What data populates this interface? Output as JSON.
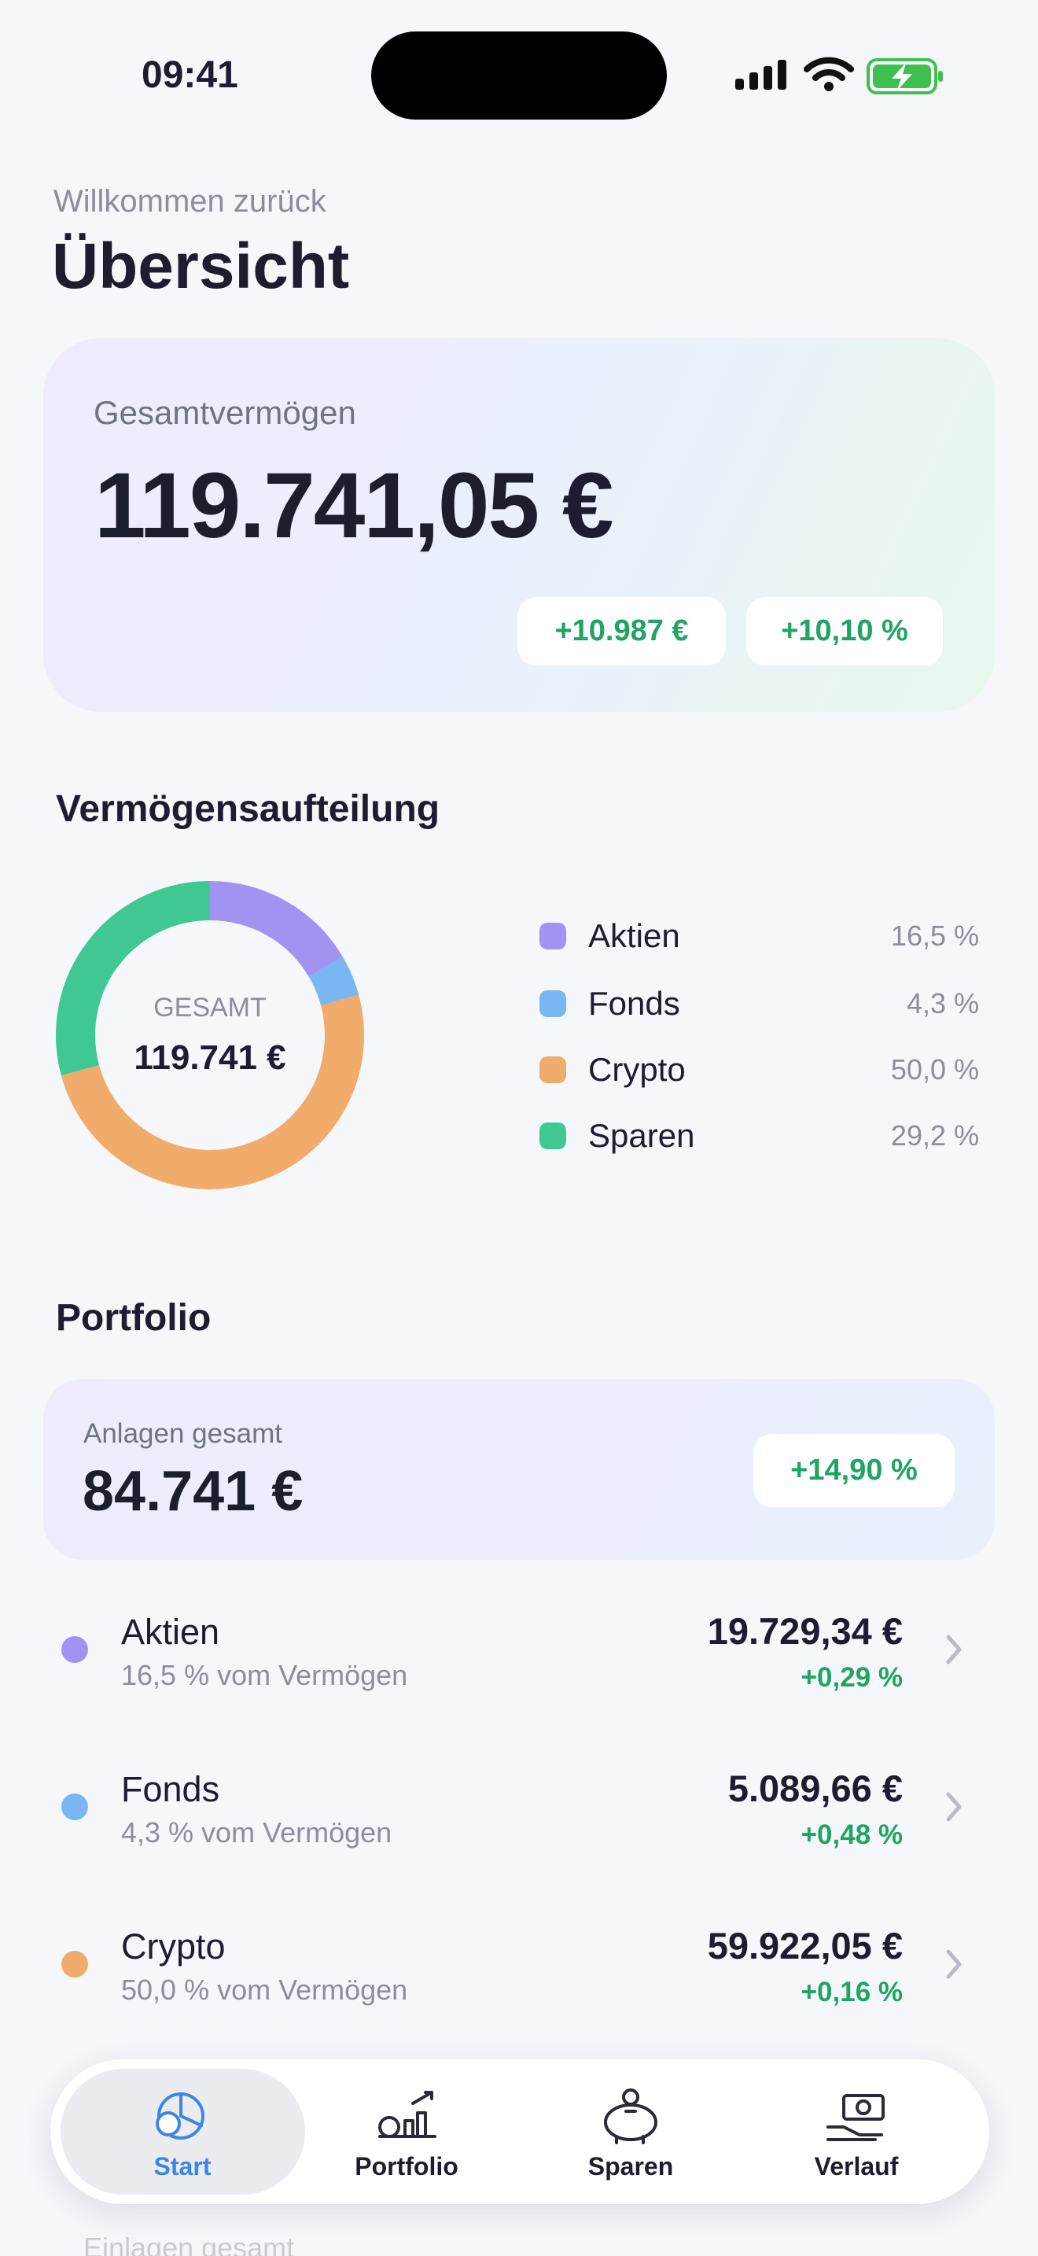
{
  "status_bar": {
    "time": "09:41"
  },
  "header": {
    "greeting": "Willkommen zurück",
    "title": "Übersicht"
  },
  "summary": {
    "label": "Gesamtvermögen",
    "total": "119.741,05 €",
    "change_abs": "+10.987 €",
    "change_pct": "+10,10 %"
  },
  "chart_data": {
    "type": "pie",
    "title": "Vermögensaufteilung",
    "center_label": "GESAMT",
    "center_value": "119.741 €",
    "categories": [
      "Aktien",
      "Fonds",
      "Crypto",
      "Sparen"
    ],
    "values": [
      16.5,
      4.3,
      50.0,
      29.2
    ],
    "value_labels": [
      "16,5 %",
      "4,3 %",
      "50,0 %",
      "29,2 %"
    ],
    "colors": [
      "#a293f2",
      "#7ab6f1",
      "#f1ab6b",
      "#3fc894"
    ]
  },
  "portfolio": {
    "title": "Portfolio",
    "total_label": "Anlagen gesamt",
    "total": "84.741 €",
    "change": "+14,90 %",
    "items": [
      {
        "name": "Aktien",
        "share": "16,5 % vom Vermögen",
        "amount": "19.729,34 €",
        "change": "+0,29 %",
        "color": "#a293f2"
      },
      {
        "name": "Fonds",
        "share": "4,3 % vom Vermögen",
        "amount": "5.089,66 €",
        "change": "+0,48 %",
        "color": "#7ab6f1"
      },
      {
        "name": "Crypto",
        "share": "50,0 % vom Vermögen",
        "amount": "59.922,05 €",
        "change": "+0,16 %",
        "color": "#f1ab6b"
      }
    ]
  },
  "nav": {
    "tabs": [
      "Start",
      "Portfolio",
      "Sparen",
      "Verlauf"
    ],
    "active": 0
  },
  "footer_peek": "Einlagen gesamt"
}
